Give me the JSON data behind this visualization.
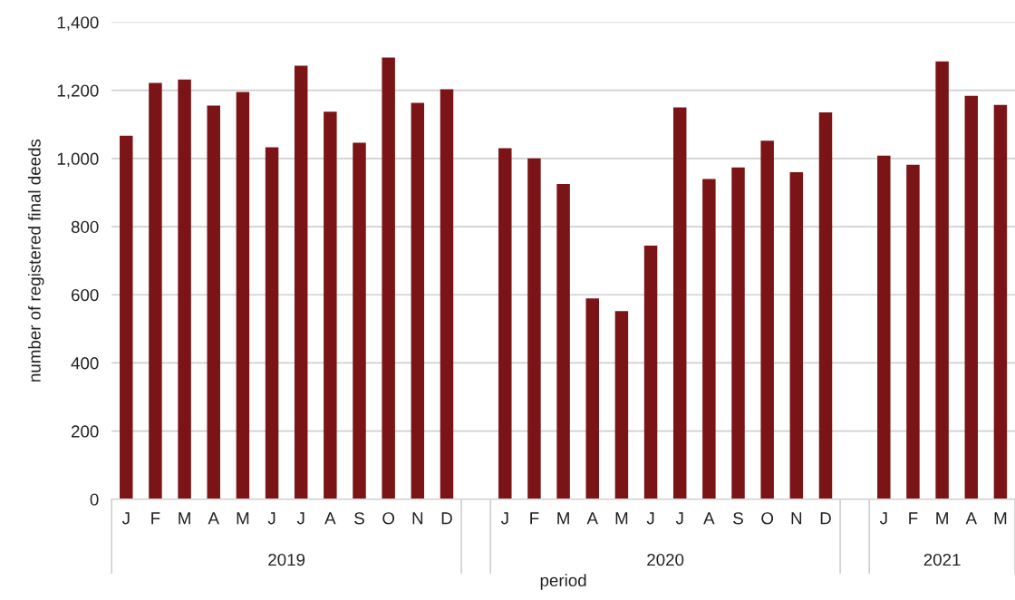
{
  "chart_data": {
    "type": "bar",
    "xlabel": "period",
    "ylabel": "number of registered final deeds",
    "categories": [
      "J",
      "F",
      "M",
      "A",
      "M",
      "J",
      "J",
      "A",
      "S",
      "O",
      "N",
      "D",
      null,
      "J",
      "F",
      "M",
      "A",
      "M",
      "J",
      "J",
      "A",
      "S",
      "O",
      "N",
      "D",
      null,
      "J",
      "F",
      "M",
      "A",
      "M"
    ],
    "values": [
      1067,
      1222,
      1232,
      1155,
      1195,
      1033,
      1272,
      1137,
      1046,
      1296,
      1163,
      1203,
      null,
      1030,
      1000,
      925,
      589,
      552,
      744,
      1150,
      940,
      974,
      1052,
      960,
      1135,
      null,
      1008,
      982,
      1285,
      1184,
      1157
    ],
    "color": "#7b1416",
    "annotations": [
      "2019",
      "2020",
      "2021"
    ],
    "ylim": [
      0,
      1400
    ],
    "yticks": [
      {
        "value": 0,
        "label": "0"
      },
      {
        "value": 200,
        "label": "200"
      },
      {
        "value": 400,
        "label": "400"
      },
      {
        "value": 600,
        "label": "600"
      },
      {
        "value": 800,
        "label": "800"
      },
      {
        "value": 1000,
        "label": "1,000"
      },
      {
        "value": 1200,
        "label": "1,200"
      },
      {
        "value": 1400,
        "label": "1,400"
      }
    ],
    "grid": "y"
  }
}
